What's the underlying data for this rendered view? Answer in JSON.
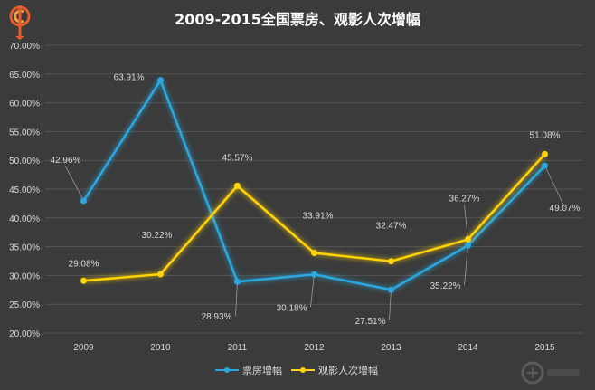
{
  "title": "2009-2015全国票房、观影人次增幅",
  "colors": {
    "background": "#3b3b3b",
    "box_office": "#29a8e0",
    "admissions": "#ffd400",
    "grid": "#555555",
    "text": "#d9d9d9"
  },
  "icons": {
    "logo": "logo-icon",
    "watermark": "watermark-icon"
  },
  "chart_data": {
    "type": "line",
    "title": "2009-2015全国票房、观影人次增幅",
    "categories": [
      "2009",
      "2010",
      "2011",
      "2012",
      "2013",
      "2014",
      "2015"
    ],
    "y_ticks": [
      "20.00%",
      "25.00%",
      "30.00%",
      "35.00%",
      "40.00%",
      "45.00%",
      "50.00%",
      "55.00%",
      "60.00%",
      "65.00%",
      "70.00%"
    ],
    "ylim": [
      20,
      70
    ],
    "grid": true,
    "legend_position": "bottom",
    "series": [
      {
        "name": "票房增幅",
        "values": [
          42.96,
          63.91,
          28.93,
          30.18,
          27.51,
          35.22,
          49.07
        ],
        "labels": [
          "42.96%",
          "63.91%",
          "28.93%",
          "30.18%",
          "27.51%",
          "35.22%",
          "49.07%"
        ]
      },
      {
        "name": "观影人次增幅",
        "values": [
          29.08,
          30.22,
          45.57,
          33.91,
          32.47,
          36.27,
          51.08
        ],
        "labels": [
          "29.08%",
          "30.22%",
          "45.57%",
          "33.91%",
          "32.47%",
          "36.27%",
          "51.08%"
        ]
      }
    ]
  }
}
